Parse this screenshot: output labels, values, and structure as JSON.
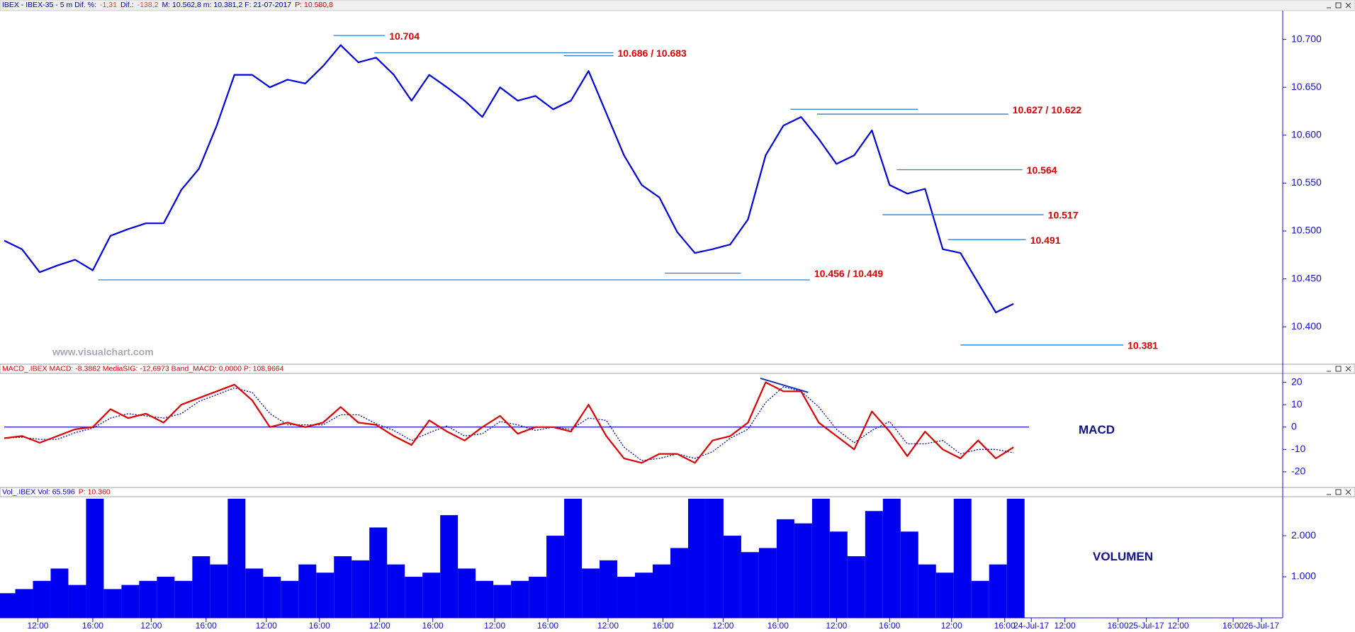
{
  "chart_data": [
    {
      "type": "line",
      "color": "#0000e0",
      "header": [
        {
          "text": "IBEX - IBEX-35 -  5 m  Dif. %:",
          "color": "#0000c0"
        },
        {
          "text": "-1,31",
          "color": "#e05020"
        },
        {
          "text": "Dif.:",
          "color": "#0000c0"
        },
        {
          "text": "-138,2",
          "color": "#e05020"
        },
        {
          "text": "M: 10.562,8  m: 10.381,2  F: 21-07-2017",
          "color": "#0000c0"
        },
        {
          "text": "P: 10.580,8",
          "color": "#e00000"
        }
      ],
      "watermark": "www.visualchart.com",
      "x": [
        0,
        1,
        2,
        3,
        4,
        5,
        6,
        7,
        8,
        9,
        10,
        11,
        12,
        13,
        14,
        15,
        16,
        17,
        18,
        19,
        20,
        21,
        22,
        23,
        24,
        25,
        26,
        27,
        28,
        29,
        30,
        31,
        32,
        33,
        34,
        35,
        36,
        37,
        38,
        39,
        40,
        41,
        42,
        43,
        44,
        45,
        46,
        47,
        48,
        49,
        50,
        51,
        52,
        53,
        54,
        55,
        56,
        57
      ],
      "values": [
        10490,
        10481,
        10457,
        10464,
        10470,
        10459,
        10495,
        10502,
        10508,
        10508,
        10543,
        10565,
        10610,
        10663,
        10663,
        10650,
        10658,
        10654,
        10672,
        10694,
        10676,
        10681,
        10663,
        10636,
        10663,
        10650,
        10636,
        10619,
        10650,
        10636,
        10641,
        10627,
        10636,
        10667,
        10623,
        10579,
        10548,
        10535,
        10499,
        10477,
        10481,
        10486,
        10512,
        10579,
        10610,
        10619,
        10596,
        10570,
        10579,
        10605,
        10548,
        10539,
        10544,
        10481,
        10477,
        10446,
        10415,
        10424
      ],
      "xlim": [
        0,
        72.2
      ],
      "ylim": [
        10361,
        10730
      ],
      "yticks": [
        {
          "value": 10400,
          "label": "10.400"
        },
        {
          "value": 10450,
          "label": "10.450"
        },
        {
          "value": 10500,
          "label": "10.500"
        },
        {
          "value": 10550,
          "label": "10.550"
        },
        {
          "value": 10600,
          "label": "10.600"
        },
        {
          "value": 10650,
          "label": "10.650"
        },
        {
          "value": 10700,
          "label": "10.700"
        }
      ],
      "annotations": [
        {
          "label": "10.704",
          "lines": [
            {
              "value": 10704,
              "x": [
                18.6,
                21.5
              ]
            }
          ]
        },
        {
          "label": "10.686 / 10.683",
          "lines": [
            {
              "value": 10686,
              "x": [
                20.9,
                34.4
              ]
            },
            {
              "value": 10683,
              "x": [
                31.6,
                34.4
              ]
            }
          ]
        },
        {
          "label": "10.627 / 10.622",
          "lines": [
            {
              "value": 10627,
              "x": [
                44.4,
                51.6
              ]
            },
            {
              "value": 10622,
              "x": [
                45.9,
                56.7
              ]
            }
          ]
        },
        {
          "label": "10.564",
          "lines": [
            {
              "value": 10564,
              "x": [
                50.4,
                57.5
              ]
            }
          ]
        },
        {
          "label": "10.517",
          "lines": [
            {
              "value": 10517,
              "x": [
                49.6,
                58.7
              ]
            }
          ]
        },
        {
          "label": "10.491",
          "lines": [
            {
              "value": 10491,
              "x": [
                53.3,
                57.7
              ]
            }
          ]
        },
        {
          "label": "10.456 / 10.449",
          "lines": [
            {
              "value": 10456,
              "x": [
                37.3,
                41.6
              ]
            },
            {
              "value": 10449,
              "x": [
                5.3,
                45.5
              ]
            }
          ]
        },
        {
          "label": "10.381",
          "lines": [
            {
              "value": 10381,
              "x": [
                54,
                63.2
              ]
            }
          ]
        }
      ]
    },
    {
      "type": "line",
      "label": "MACD",
      "header": [
        {
          "text": "MACD_.IBEX  MACD: -8,3862  MediaSIG: -12,6973  Band_MACD: 0,0000  P: 108,9664",
          "color": "#e00000"
        }
      ],
      "x": [
        0,
        1,
        2,
        3,
        4,
        5,
        6,
        7,
        8,
        9,
        10,
        11,
        12,
        13,
        14,
        15,
        16,
        17,
        18,
        19,
        20,
        21,
        22,
        23,
        24,
        25,
        26,
        27,
        28,
        29,
        30,
        31,
        32,
        33,
        34,
        35,
        36,
        37,
        38,
        39,
        40,
        41,
        42,
        43,
        44,
        45,
        46,
        47,
        48,
        49,
        50,
        51,
        52,
        53,
        54,
        55,
        56,
        57
      ],
      "series": [
        {
          "color": "#e00000",
          "dash": false,
          "values": [
            -5,
            -4,
            -7,
            -4,
            -1,
            0,
            8,
            4,
            6,
            2,
            10,
            13,
            16,
            19,
            12,
            0,
            2,
            0,
            2,
            9,
            2,
            1,
            -4,
            -8,
            3,
            -2,
            -6,
            0,
            5,
            -3,
            0,
            0,
            -2,
            10,
            -4,
            -14,
            -16,
            -12,
            -12,
            -16,
            -6,
            -4,
            2,
            20,
            16,
            16,
            2,
            -4,
            -10,
            7,
            -2,
            -13,
            -2,
            -10,
            -14,
            -6,
            -14,
            -9
          ]
        },
        {
          "color": "#0000c0",
          "dash": true,
          "values": [
            -5,
            -4.5,
            -5.5,
            -5.5,
            -2.5,
            -0.5,
            4,
            6,
            5,
            4,
            6,
            11.5,
            14.5,
            17.5,
            15.5,
            6,
            1,
            1,
            1,
            5.5,
            5.5,
            1.5,
            -1.5,
            -6,
            -2.5,
            0.5,
            -4,
            -3,
            2.5,
            1,
            -1.5,
            0,
            -1,
            4,
            3,
            -9,
            -15,
            -14,
            -12,
            -14,
            -11,
            -5,
            -1,
            11,
            18,
            16,
            9,
            -1,
            -7,
            -1.5,
            2.5,
            -7.5,
            -7.5,
            -6,
            -12,
            -10,
            -10,
            -11.5
          ]
        }
      ],
      "hline": 0,
      "trendline": {
        "x": [
          42.7,
          45.4
        ],
        "values": [
          21.8,
          15.5
        ]
      },
      "xlim": [
        0,
        72.2
      ],
      "ylim": [
        -27,
        24
      ],
      "yticks": [
        -20,
        -10,
        0,
        10,
        20
      ]
    },
    {
      "type": "bar",
      "label": "VOLUMEN",
      "color": "#0000f0",
      "header": [
        {
          "text": "Vol_.IBEX  Vol: 65.596",
          "color": "#0000c0"
        },
        {
          "text": "P: 10.360",
          "color": "#e00000"
        }
      ],
      "x": [
        0,
        1,
        2,
        3,
        4,
        5,
        6,
        7,
        8,
        9,
        10,
        11,
        12,
        13,
        14,
        15,
        16,
        17,
        18,
        19,
        20,
        21,
        22,
        23,
        24,
        25,
        26,
        27,
        28,
        29,
        30,
        31,
        32,
        33,
        34,
        35,
        36,
        37,
        38,
        39,
        40,
        41,
        42,
        43,
        44,
        45,
        46,
        47,
        48,
        49,
        50,
        51,
        52,
        53,
        54,
        55,
        56,
        57
      ],
      "values": [
        600,
        700,
        900,
        1200,
        800,
        2900,
        700,
        800,
        900,
        1000,
        900,
        1500,
        1300,
        2900,
        1200,
        1000,
        900,
        1300,
        1100,
        1500,
        1400,
        2200,
        1300,
        1000,
        1100,
        2500,
        1200,
        900,
        800,
        900,
        1000,
        2000,
        2900,
        1200,
        1400,
        1000,
        1100,
        1300,
        1700,
        2900,
        2900,
        2000,
        1600,
        1700,
        2400,
        2300,
        2900,
        2100,
        1500,
        2600,
        2900,
        2100,
        1300,
        1100,
        2900,
        900,
        1300,
        2900
      ],
      "xlim": [
        0,
        72.2
      ],
      "ylim": [
        0,
        2950
      ],
      "yticks": [
        {
          "value": 1000,
          "label": "1.000"
        },
        {
          "value": 2000,
          "label": "2.000"
        }
      ],
      "xticks": [
        {
          "value": 1.9,
          "label": "12:00"
        },
        {
          "value": 5.0,
          "label": "16:00"
        },
        {
          "value": 8.3,
          "label": "12:00"
        },
        {
          "value": 11.4,
          "label": "16:00"
        },
        {
          "value": 14.8,
          "label": "12:00"
        },
        {
          "value": 17.8,
          "label": "16:00"
        },
        {
          "value": 21.2,
          "label": "12:00"
        },
        {
          "value": 24.2,
          "label": "16:00"
        },
        {
          "value": 27.7,
          "label": "12:00"
        },
        {
          "value": 30.7,
          "label": "16:00"
        },
        {
          "value": 34.1,
          "label": "12:00"
        },
        {
          "value": 37.2,
          "label": "16:00"
        },
        {
          "value": 40.6,
          "label": "12:00"
        },
        {
          "value": 43.7,
          "label": "16:00"
        },
        {
          "value": 47.0,
          "label": "12:00"
        },
        {
          "value": 50.0,
          "label": "16:00"
        },
        {
          "value": 53.5,
          "label": "12:00"
        },
        {
          "value": 56.5,
          "label": "16:00"
        },
        {
          "value": 58.0,
          "label": "24-Jul-17"
        },
        {
          "value": 59.9,
          "label": "12:00"
        },
        {
          "value": 62.9,
          "label": "16:00"
        },
        {
          "value": 64.5,
          "label": "25-Jul-17"
        },
        {
          "value": 66.3,
          "label": "12:00"
        },
        {
          "value": 69.4,
          "label": "16:00"
        },
        {
          "value": 71.0,
          "label": "26-Jul-17"
        }
      ]
    }
  ]
}
